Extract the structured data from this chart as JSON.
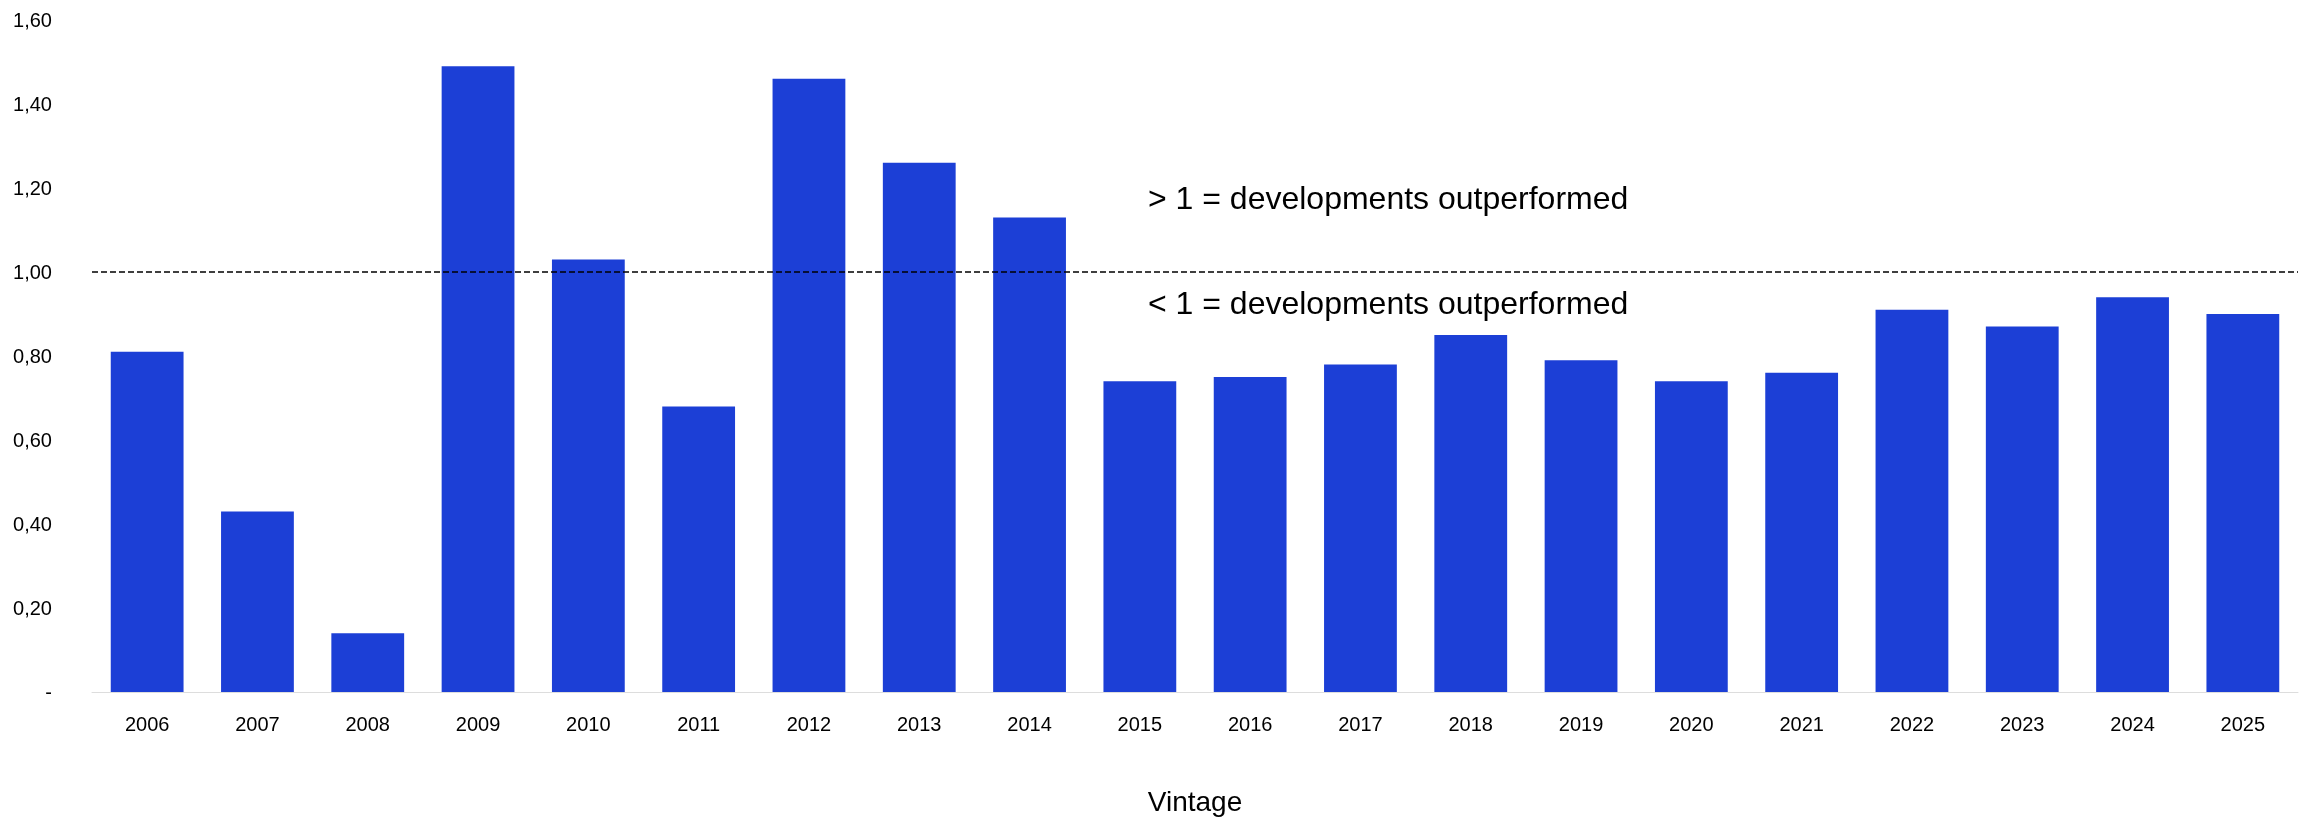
{
  "chart_data": {
    "type": "bar",
    "xlabel": "Vintage",
    "categories": [
      "2006",
      "2007",
      "2008",
      "2009",
      "2010",
      "2011",
      "2012",
      "2013",
      "2014",
      "2015",
      "2016",
      "2017",
      "2018",
      "2019",
      "2020",
      "2021",
      "2022",
      "2023",
      "2024",
      "2025"
    ],
    "values": [
      0.81,
      0.43,
      0.14,
      1.49,
      1.03,
      0.68,
      1.46,
      1.26,
      1.13,
      0.74,
      0.75,
      0.78,
      0.85,
      0.79,
      0.74,
      0.76,
      0.91,
      0.87,
      0.94,
      0.9
    ],
    "color": "#1c3fd6",
    "ylim": [
      0,
      1.6
    ],
    "yticks": [
      {
        "value": 0,
        "label": "-"
      },
      {
        "value": 0.2,
        "label": "0,20"
      },
      {
        "value": 0.4,
        "label": "0,40"
      },
      {
        "value": 0.6,
        "label": "0,60"
      },
      {
        "value": 0.8,
        "label": "0,80"
      },
      {
        "value": 1.0,
        "label": "1,00"
      },
      {
        "value": 1.2,
        "label": "1,20"
      },
      {
        "value": 1.4,
        "label": "1,40"
      },
      {
        "value": 1.6,
        "label": "1,60"
      }
    ],
    "ref_lines": [
      {
        "axis": "y",
        "value": 1.0,
        "color": "#000000",
        "line_style": "dashed"
      }
    ],
    "annotations": [
      "> 1 = developments outperformed",
      "< 1 = developments outperformed"
    ],
    "grid": false
  }
}
